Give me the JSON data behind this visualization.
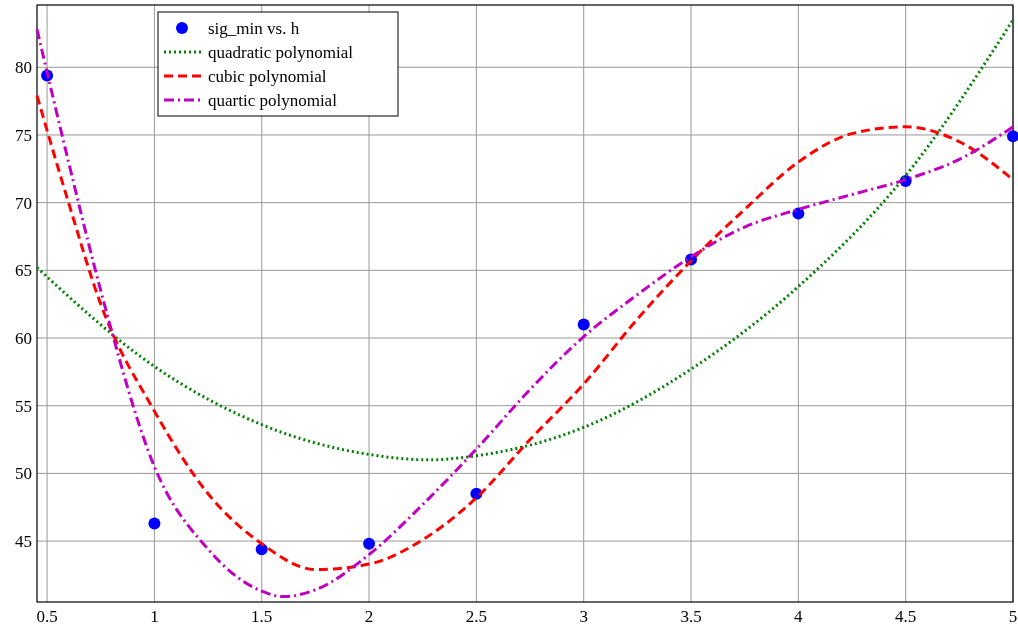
{
  "chart_data": {
    "type": "scatter",
    "xlim": [
      0.453,
      5
    ],
    "ylim": [
      40.5,
      84.6
    ],
    "xticks": [
      0.5,
      1,
      1.5,
      2,
      2.5,
      3,
      3.5,
      4,
      4.5,
      5
    ],
    "yticks": [
      45,
      50,
      55,
      60,
      65,
      70,
      75,
      80
    ],
    "grid": true,
    "legend": "top left",
    "series": [
      {
        "name": "sig_min vs. h",
        "marker": "circle",
        "color": "#0000ff",
        "x": [
          0.5,
          1,
          1.5,
          2,
          2.5,
          3,
          3.5,
          4,
          4.5,
          5
        ],
        "values": [
          79.4,
          46.3,
          44.4,
          44.8,
          48.5,
          61,
          65.8,
          69.2,
          71.6,
          74.9
        ]
      },
      {
        "name": "quadratic polynomial",
        "type": "line",
        "line_style": "dotted",
        "color": "#008000",
        "x": [
          0.453,
          1,
          1.5,
          2,
          2.28,
          2.5,
          3,
          3.5,
          4,
          4.5,
          5
        ],
        "values": [
          65.2,
          57.9,
          53.6,
          51.4,
          51,
          51.3,
          53.4,
          57.7,
          63.8,
          72,
          83.5
        ]
      },
      {
        "name": "cubic polynomial",
        "type": "line",
        "line_style": "dashed",
        "color": "#ff0000",
        "x": [
          0.453,
          0.6,
          0.75,
          1,
          1.25,
          1.5,
          1.75,
          2,
          2.25,
          2.5,
          2.75,
          3,
          3.25,
          3.5,
          3.75,
          4,
          4.25,
          4.5,
          4.75,
          5
        ],
        "values": [
          77.9,
          70,
          62.5,
          54.6,
          48.5,
          44.8,
          42.9,
          43.3,
          45.1,
          48.2,
          52.5,
          56.6,
          61.4,
          65.7,
          69.5,
          73,
          75.1,
          75.6,
          74.5,
          71.7
        ]
      },
      {
        "name": "quartic polynomial",
        "type": "line",
        "line_style": "dashdot",
        "color": "#c000c0",
        "x": [
          0.453,
          0.6,
          0.75,
          1,
          1.25,
          1.5,
          1.6,
          1.75,
          2,
          2.25,
          2.5,
          2.75,
          3,
          3.25,
          3.5,
          3.75,
          4,
          4.25,
          4.5,
          4.75,
          5
        ],
        "values": [
          82.8,
          73,
          63.5,
          50.5,
          44.4,
          41.3,
          40.9,
          41.4,
          44,
          47.7,
          51.8,
          56.2,
          60.1,
          63.2,
          66,
          68.2,
          69.5,
          70.6,
          71.7,
          73.2,
          75.6
        ]
      }
    ]
  }
}
